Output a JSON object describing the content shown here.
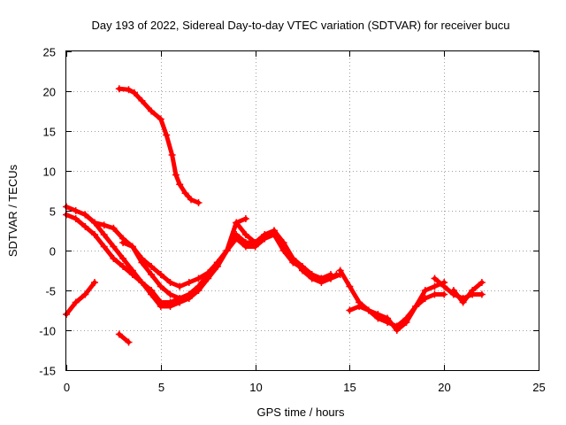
{
  "chart_data": {
    "type": "scatter",
    "title": "Day 193 of 2022, Sidereal Day-to-day VTEC variation (SDTVAR) for receiver bucu",
    "xlabel": "GPS time / hours",
    "ylabel": "SDTVAR / TECUs",
    "xlim": [
      0,
      25
    ],
    "ylim": [
      -15,
      25
    ],
    "xticks": [
      0,
      5,
      10,
      15,
      20,
      25
    ],
    "yticks": [
      -15,
      -10,
      -5,
      0,
      5,
      10,
      15,
      20,
      25
    ],
    "grid": true,
    "legend": "none",
    "marker": "+",
    "color": "#ff0000",
    "series": [
      {
        "name": "s1",
        "x": [
          2.8,
          3.3,
          3.6,
          4.0,
          4.5,
          5.0,
          5.3,
          5.6,
          5.8,
          6.0,
          6.3,
          6.6,
          7.0
        ],
        "y": [
          20.3,
          20.2,
          19.8,
          18.8,
          17.5,
          16.5,
          14.5,
          12.0,
          9.5,
          8.3,
          7.2,
          6.4,
          6.0
        ]
      },
      {
        "name": "s2",
        "x": [
          0.0,
          0.5,
          1.0,
          1.5,
          2.0,
          2.5,
          3.0,
          3.5,
          4.0,
          4.5,
          5.0,
          5.5,
          6.0,
          6.5,
          7.0,
          7.5,
          8.0,
          8.5,
          9.0,
          9.5,
          10.0,
          10.5,
          11.0,
          11.5,
          12.0,
          12.5,
          13.0,
          13.5,
          14.0,
          14.3
        ],
        "y": [
          5.5,
          5.0,
          4.5,
          3.5,
          3.2,
          2.8,
          1.5,
          0.5,
          -1.0,
          -2.0,
          -3.0,
          -4.0,
          -4.5,
          -4.0,
          -3.5,
          -2.8,
          -1.5,
          0.0,
          1.5,
          0.5,
          0.5,
          1.5,
          2.0,
          0.0,
          -1.5,
          -2.2,
          -3.0,
          -3.5,
          -3.5,
          -3.0
        ]
      },
      {
        "name": "s3",
        "x": [
          0.0,
          0.5,
          1.0,
          1.5,
          2.0,
          2.5,
          3.0,
          3.5,
          4.0,
          4.5,
          5.0,
          5.5,
          6.0,
          6.5,
          7.0,
          7.5,
          8.0,
          8.5,
          9.0,
          9.5,
          10.0,
          10.5,
          11.0,
          11.5,
          12.0,
          12.5,
          13.0,
          13.5,
          14.0,
          14.5
        ],
        "y": [
          4.5,
          4.0,
          3.0,
          2.0,
          0.5,
          -1.0,
          -2.0,
          -3.0,
          -4.0,
          -5.0,
          -6.5,
          -6.5,
          -6.0,
          -5.5,
          -4.5,
          -3.0,
          -1.5,
          0.0,
          2.0,
          1.0,
          1.0,
          2.0,
          2.5,
          0.5,
          -1.0,
          -2.5,
          -3.5,
          -4.0,
          -3.5,
          -3.0
        ]
      },
      {
        "name": "s4",
        "x": [
          1.0,
          1.5,
          2.0,
          2.5,
          3.0,
          3.5,
          4.0,
          4.5,
          5.0,
          5.5,
          6.0,
          6.5,
          7.0,
          7.5,
          8.0,
          8.5,
          9.0,
          9.5,
          10.0,
          10.5,
          11.0,
          11.5,
          12.0,
          12.5,
          13.0,
          13.5,
          14.0
        ],
        "y": [
          4.5,
          3.5,
          2.0,
          0.5,
          -1.0,
          -2.5,
          -4.0,
          -5.5,
          -7.0,
          -7.0,
          -6.5,
          -6.0,
          -5.0,
          -3.5,
          -2.0,
          0.0,
          3.5,
          2.0,
          1.0,
          2.0,
          2.5,
          1.0,
          -1.0,
          -2.0,
          -3.0,
          -3.5,
          -3.0
        ]
      },
      {
        "name": "s5",
        "x": [
          3.0,
          3.5,
          4.0,
          4.5,
          5.0,
          5.5,
          6.0,
          6.5,
          7.0,
          7.5,
          8.0,
          8.5,
          9.0,
          9.5
        ],
        "y": [
          1.0,
          0.5,
          -1.5,
          -3.0,
          -4.5,
          -5.5,
          -6.0,
          -5.5,
          -4.5,
          -3.0,
          -1.5,
          0.0,
          3.5,
          4.0
        ]
      },
      {
        "name": "s6",
        "x": [
          0.0,
          0.5,
          1.0,
          1.5
        ],
        "y": [
          -8.0,
          -6.5,
          -5.5,
          -4.0
        ]
      },
      {
        "name": "s7",
        "x": [
          2.8,
          3.3
        ],
        "y": [
          -10.5,
          -11.5
        ]
      },
      {
        "name": "s8",
        "x": [
          14.5,
          15.0,
          15.5,
          16.0,
          16.5,
          17.0,
          17.5,
          18.0,
          18.5,
          19.0,
          19.5,
          20.0
        ],
        "y": [
          -2.5,
          -4.5,
          -6.5,
          -7.5,
          -8.0,
          -8.5,
          -10.0,
          -9.0,
          -7.0,
          -5.0,
          -4.5,
          -4.0
        ]
      },
      {
        "name": "s9",
        "x": [
          15.0,
          15.5,
          16.0,
          16.5,
          17.0,
          17.5,
          18.0,
          18.5,
          19.0,
          19.5,
          20.0
        ],
        "y": [
          -7.5,
          -7.0,
          -7.5,
          -8.5,
          -9.0,
          -9.5,
          -8.5,
          -7.0,
          -6.0,
          -5.5,
          -5.5
        ]
      },
      {
        "name": "s10",
        "x": [
          19.5,
          20.0,
          20.5,
          21.0,
          21.5,
          22.0
        ],
        "y": [
          -3.5,
          -4.5,
          -5.5,
          -6.0,
          -5.5,
          -5.5
        ]
      },
      {
        "name": "s11",
        "x": [
          20.5,
          21.0,
          21.5,
          22.0
        ],
        "y": [
          -5.0,
          -6.5,
          -5.0,
          -4.0
        ]
      }
    ]
  }
}
